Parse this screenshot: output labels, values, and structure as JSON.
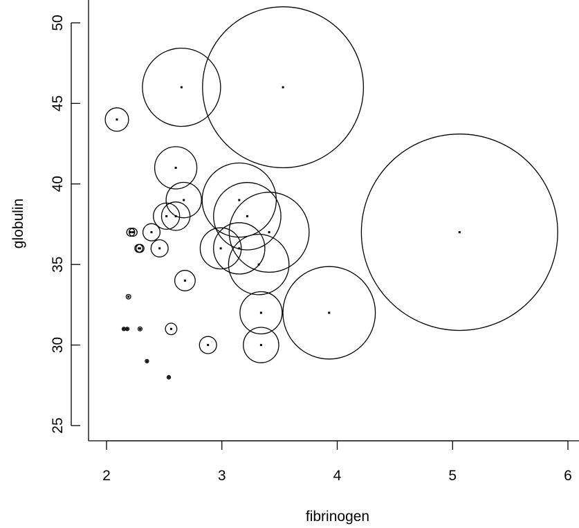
{
  "chart_data": {
    "type": "scatter",
    "variant": "bubble",
    "title": "",
    "xlabel": "fibrinogen",
    "ylabel": "globulin",
    "xlim": [
      2,
      6
    ],
    "ylim": [
      25,
      50
    ],
    "x_ticks": [
      2,
      3,
      4,
      5,
      6
    ],
    "y_ticks": [
      25,
      30,
      35,
      40,
      45,
      50
    ],
    "x_tick_labels": [
      "2",
      "3",
      "4",
      "5",
      "6"
    ],
    "y_tick_labels": [
      "25",
      "30",
      "35",
      "40",
      "45",
      "50"
    ],
    "grid": false,
    "legend": "none",
    "marker_color": "#000000",
    "points": [
      {
        "x": 2.09,
        "y": 44,
        "size": 2.05
      },
      {
        "x": 2.65,
        "y": 46,
        "size": 6.85
      },
      {
        "x": 3.53,
        "y": 46,
        "size": 14.1
      },
      {
        "x": 2.6,
        "y": 41,
        "size": 3.7
      },
      {
        "x": 2.67,
        "y": 39,
        "size": 3.1
      },
      {
        "x": 3.15,
        "y": 39,
        "size": 6.5
      },
      {
        "x": 2.52,
        "y": 38,
        "size": 2.3
      },
      {
        "x": 2.6,
        "y": 38,
        "size": 2.5
      },
      {
        "x": 3.22,
        "y": 38,
        "size": 5.9
      },
      {
        "x": 2.21,
        "y": 37,
        "size": 0.7
      },
      {
        "x": 2.23,
        "y": 37,
        "size": 0.7
      },
      {
        "x": 2.39,
        "y": 37,
        "size": 1.5
      },
      {
        "x": 3.41,
        "y": 37,
        "size": 7.0
      },
      {
        "x": 5.06,
        "y": 37,
        "size": 17.2
      },
      {
        "x": 2.28,
        "y": 36,
        "size": 0.7
      },
      {
        "x": 2.29,
        "y": 36,
        "size": 0.7
      },
      {
        "x": 2.46,
        "y": 36,
        "size": 1.5
      },
      {
        "x": 2.99,
        "y": 36,
        "size": 3.6
      },
      {
        "x": 3.15,
        "y": 36,
        "size": 4.5
      },
      {
        "x": 3.32,
        "y": 35,
        "size": 5.3
      },
      {
        "x": 2.68,
        "y": 34,
        "size": 1.8
      },
      {
        "x": 2.19,
        "y": 33,
        "size": 0.4
      },
      {
        "x": 3.34,
        "y": 32,
        "size": 3.7
      },
      {
        "x": 3.93,
        "y": 32,
        "size": 8.1
      },
      {
        "x": 2.15,
        "y": 31,
        "size": 0.3
      },
      {
        "x": 2.18,
        "y": 31,
        "size": 0.3
      },
      {
        "x": 2.29,
        "y": 31,
        "size": 0.35
      },
      {
        "x": 2.56,
        "y": 31,
        "size": 1.0
      },
      {
        "x": 2.88,
        "y": 30,
        "size": 1.5
      },
      {
        "x": 3.34,
        "y": 30,
        "size": 3.1
      },
      {
        "x": 2.35,
        "y": 29,
        "size": 0.3
      },
      {
        "x": 2.54,
        "y": 28,
        "size": 0.3
      }
    ]
  }
}
